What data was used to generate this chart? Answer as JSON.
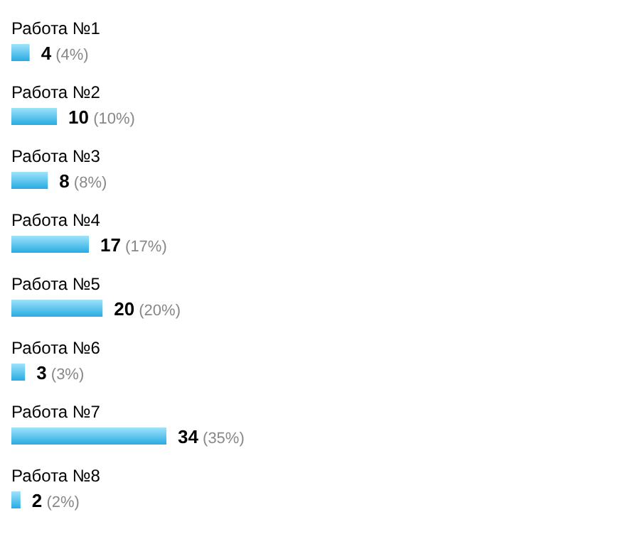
{
  "chart_data": {
    "type": "bar",
    "orientation": "horizontal",
    "categories": [
      "Работа №1",
      "Работа №2",
      "Работа №3",
      "Работа №4",
      "Работа №5",
      "Работа №6",
      "Работа №7",
      "Работа №8"
    ],
    "values": [
      4,
      10,
      8,
      17,
      20,
      3,
      34,
      2
    ],
    "value_labels": [
      "4 (4%)",
      "10 (10%)",
      "8 (8%)",
      "17 (17%)",
      "20 (20%)",
      "3 (3%)",
      "34 (35%)",
      "2 (2%)"
    ],
    "color": "#29abe2",
    "grid": false,
    "legend": false
  }
}
